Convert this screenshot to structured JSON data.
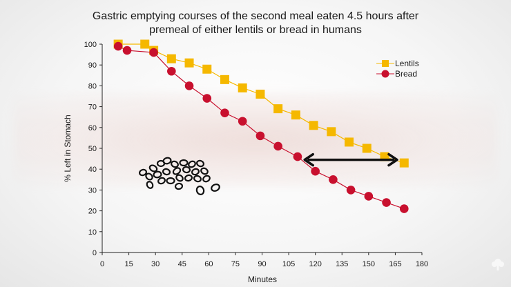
{
  "chart_data": {
    "type": "line",
    "title_line1": "Gastric emptying courses of the second meal eaten 4.5 hours after",
    "title_line2": "premeal of either lentils or bread in humans",
    "xlabel": "Minutes",
    "ylabel": "% Left in Stomach",
    "xlim": [
      0,
      180
    ],
    "ylim": [
      0,
      100
    ],
    "x_ticks": [
      0,
      15,
      30,
      45,
      60,
      75,
      90,
      105,
      120,
      135,
      150,
      165,
      180
    ],
    "y_ticks": [
      0,
      10,
      20,
      30,
      40,
      50,
      60,
      70,
      80,
      90,
      100
    ],
    "grid": false,
    "legend_position": "top-right",
    "series": [
      {
        "name": "Lentils",
        "color": "#f5b800",
        "marker": "square",
        "x": [
          9,
          24,
          29,
          39,
          49,
          59,
          69,
          79,
          89,
          99,
          109,
          119,
          129,
          139,
          149,
          159,
          170
        ],
        "y": [
          100,
          100,
          97,
          93,
          91,
          88,
          83,
          79,
          76,
          69,
          66,
          61,
          58,
          53,
          50,
          46,
          43
        ]
      },
      {
        "name": "Bread",
        "color": "#c8102e",
        "marker": "circle",
        "x": [
          9,
          14,
          29,
          39,
          49,
          59,
          69,
          79,
          89,
          99,
          110,
          120,
          130,
          140,
          150,
          160,
          170
        ],
        "y": [
          99,
          97,
          96,
          87,
          80,
          74,
          67,
          63,
          56,
          51,
          46,
          39,
          35,
          30,
          27,
          24,
          21
        ]
      }
    ],
    "annotations": {
      "arrow": {
        "x1": 114,
        "x2": 166,
        "y": 44.5,
        "style": "double-headed"
      },
      "illustration": "lentils-drawing"
    }
  },
  "icons": {
    "corner": "tree-icon"
  }
}
